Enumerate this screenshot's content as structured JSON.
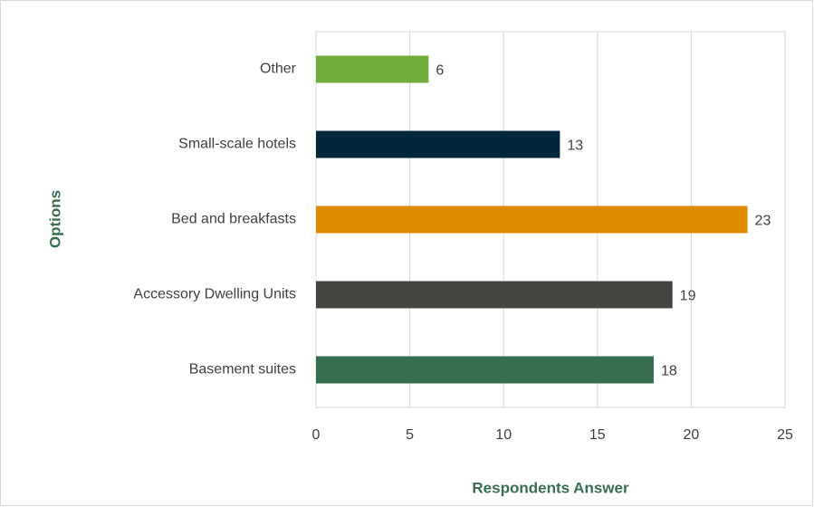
{
  "chart_data": {
    "type": "barh",
    "categories": [
      "Other",
      "Small-scale hotels",
      "Bed and breakfasts",
      "Accessory Dwelling Units",
      "Basement suites"
    ],
    "values": [
      6,
      13,
      23,
      19,
      18
    ],
    "colors": [
      "#70ad3a",
      "#00263a",
      "#e08a00",
      "#444440",
      "#376e50"
    ],
    "xlabel": "Respondents Answer",
    "ylabel": "Options",
    "xlim": [
      0,
      25
    ],
    "xticks": [
      0,
      5,
      10,
      15,
      20,
      25
    ],
    "grid": true
  }
}
